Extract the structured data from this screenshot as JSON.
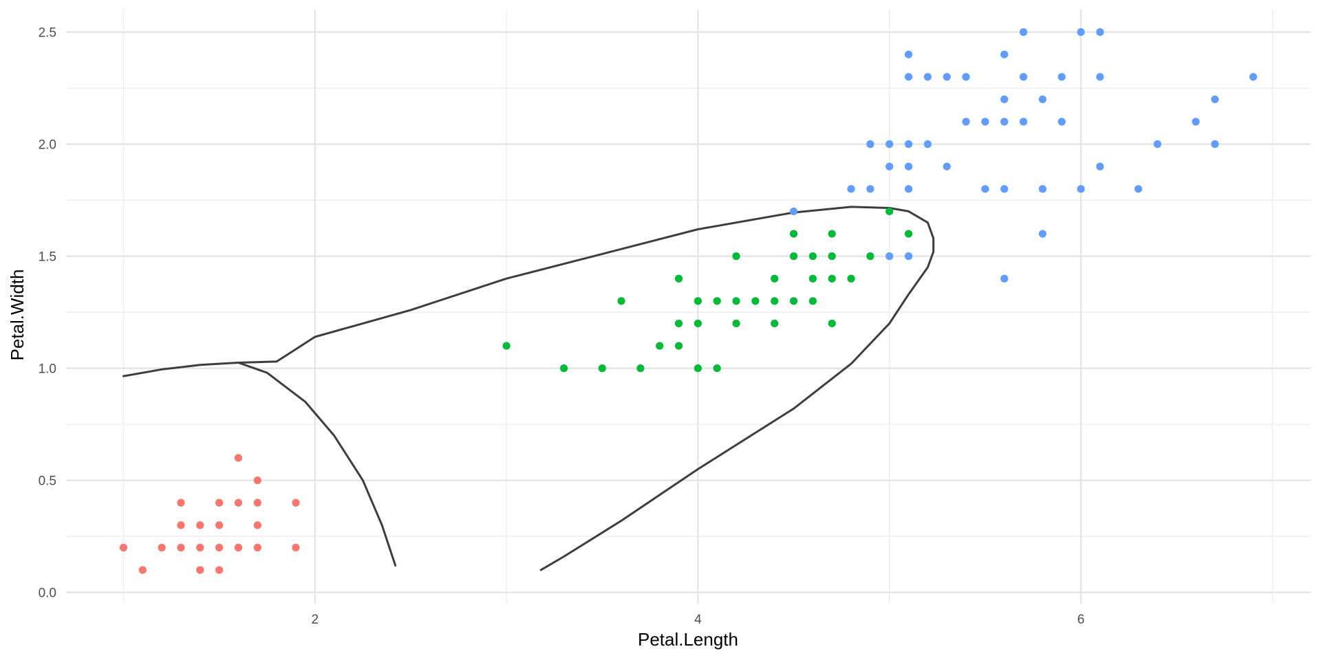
{
  "chart_data": {
    "type": "scatter",
    "title": "",
    "xlabel": "Petal.Length",
    "ylabel": "Petal.Width",
    "xlim": [
      0.7,
      7.2
    ],
    "ylim": [
      -0.05,
      2.6
    ],
    "x_ticks": [
      2,
      4,
      6
    ],
    "x_tick_labels": [
      "2",
      "4",
      "6"
    ],
    "x_minor_ticks": [
      1,
      3,
      5,
      7
    ],
    "y_ticks": [
      0,
      0.5,
      1,
      1.5,
      2,
      2.5
    ],
    "y_tick_labels": [
      "0.0",
      "0.5",
      "1.0",
      "1.5",
      "2.0",
      "2.5"
    ],
    "y_minor_ticks": [
      0.25,
      0.75,
      1.25,
      1.75,
      2.25
    ],
    "grid": true,
    "legend": "none",
    "series": [
      {
        "color": "#F8766D",
        "points": [
          [
            1.0,
            0.2
          ],
          [
            1.1,
            0.1
          ],
          [
            1.2,
            0.2
          ],
          [
            1.3,
            0.2
          ],
          [
            1.3,
            0.3
          ],
          [
            1.3,
            0.4
          ],
          [
            1.4,
            0.1
          ],
          [
            1.4,
            0.2
          ],
          [
            1.4,
            0.3
          ],
          [
            1.5,
            0.1
          ],
          [
            1.5,
            0.2
          ],
          [
            1.5,
            0.3
          ],
          [
            1.5,
            0.4
          ],
          [
            1.6,
            0.2
          ],
          [
            1.6,
            0.4
          ],
          [
            1.6,
            0.6
          ],
          [
            1.7,
            0.2
          ],
          [
            1.7,
            0.3
          ],
          [
            1.7,
            0.4
          ],
          [
            1.7,
            0.5
          ],
          [
            1.9,
            0.2
          ],
          [
            1.9,
            0.4
          ]
        ]
      },
      {
        "color": "#00BA38",
        "points": [
          [
            3.0,
            1.1
          ],
          [
            3.3,
            1.0
          ],
          [
            3.5,
            1.0
          ],
          [
            3.6,
            1.3
          ],
          [
            3.7,
            1.0
          ],
          [
            3.8,
            1.1
          ],
          [
            3.9,
            1.1
          ],
          [
            3.9,
            1.2
          ],
          [
            3.9,
            1.4
          ],
          [
            4.0,
            1.0
          ],
          [
            4.0,
            1.2
          ],
          [
            4.0,
            1.3
          ],
          [
            4.1,
            1.0
          ],
          [
            4.1,
            1.3
          ],
          [
            4.2,
            1.2
          ],
          [
            4.2,
            1.3
          ],
          [
            4.2,
            1.5
          ],
          [
            4.3,
            1.3
          ],
          [
            4.4,
            1.2
          ],
          [
            4.4,
            1.3
          ],
          [
            4.4,
            1.4
          ],
          [
            4.5,
            1.3
          ],
          [
            4.5,
            1.5
          ],
          [
            4.5,
            1.6
          ],
          [
            4.6,
            1.3
          ],
          [
            4.6,
            1.4
          ],
          [
            4.6,
            1.5
          ],
          [
            4.7,
            1.2
          ],
          [
            4.7,
            1.4
          ],
          [
            4.7,
            1.5
          ],
          [
            4.7,
            1.6
          ],
          [
            4.8,
            1.4
          ],
          [
            4.9,
            1.5
          ],
          [
            5.0,
            1.7
          ],
          [
            5.1,
            1.6
          ]
        ]
      },
      {
        "color": "#619CFF",
        "points": [
          [
            4.5,
            1.7
          ],
          [
            4.8,
            1.8
          ],
          [
            4.9,
            1.8
          ],
          [
            4.9,
            2.0
          ],
          [
            5.0,
            1.5
          ],
          [
            5.0,
            1.9
          ],
          [
            5.0,
            2.0
          ],
          [
            5.1,
            1.5
          ],
          [
            5.1,
            1.8
          ],
          [
            5.1,
            1.9
          ],
          [
            5.1,
            2.0
          ],
          [
            5.1,
            2.3
          ],
          [
            5.1,
            2.4
          ],
          [
            5.2,
            2.0
          ],
          [
            5.2,
            2.3
          ],
          [
            5.3,
            1.9
          ],
          [
            5.3,
            2.3
          ],
          [
            5.4,
            2.1
          ],
          [
            5.4,
            2.3
          ],
          [
            5.5,
            1.8
          ],
          [
            5.5,
            2.1
          ],
          [
            5.6,
            1.4
          ],
          [
            5.6,
            1.8
          ],
          [
            5.6,
            2.1
          ],
          [
            5.6,
            2.2
          ],
          [
            5.6,
            2.4
          ],
          [
            5.7,
            2.1
          ],
          [
            5.7,
            2.3
          ],
          [
            5.7,
            2.5
          ],
          [
            5.8,
            1.6
          ],
          [
            5.8,
            1.8
          ],
          [
            5.8,
            2.2
          ],
          [
            5.9,
            2.1
          ],
          [
            5.9,
            2.3
          ],
          [
            6.0,
            1.8
          ],
          [
            6.0,
            2.5
          ],
          [
            6.1,
            1.9
          ],
          [
            6.1,
            2.3
          ],
          [
            6.1,
            2.5
          ],
          [
            6.3,
            1.8
          ],
          [
            6.4,
            2.0
          ],
          [
            6.6,
            2.1
          ],
          [
            6.7,
            2.0
          ],
          [
            6.7,
            2.2
          ],
          [
            6.9,
            2.3
          ]
        ]
      }
    ],
    "boundary_color": "#3d3d3d",
    "boundaries": [
      [
        [
          1.0,
          0.965
        ],
        [
          1.2,
          0.995
        ],
        [
          1.4,
          1.015
        ],
        [
          1.6,
          1.025
        ],
        [
          1.8,
          1.03
        ],
        [
          2.0,
          1.14
        ],
        [
          2.5,
          1.26
        ],
        [
          3.0,
          1.4
        ],
        [
          3.5,
          1.51
        ],
        [
          4.0,
          1.62
        ],
        [
          4.5,
          1.695
        ],
        [
          4.8,
          1.72
        ],
        [
          5.0,
          1.715
        ],
        [
          5.1,
          1.7
        ],
        [
          5.2,
          1.65
        ],
        [
          5.23,
          1.58
        ],
        [
          5.23,
          1.52
        ],
        [
          5.2,
          1.45
        ],
        [
          5.1,
          1.33
        ],
        [
          5.0,
          1.2
        ],
        [
          4.8,
          1.02
        ],
        [
          4.5,
          0.82
        ],
        [
          4.0,
          0.55
        ],
        [
          3.6,
          0.32
        ],
        [
          3.3,
          0.16
        ],
        [
          3.18,
          0.1
        ]
      ],
      [
        [
          1.6,
          1.025
        ],
        [
          1.75,
          0.98
        ],
        [
          1.95,
          0.85
        ],
        [
          2.1,
          0.7
        ],
        [
          2.25,
          0.5
        ],
        [
          2.35,
          0.3
        ],
        [
          2.42,
          0.12
        ]
      ]
    ]
  }
}
